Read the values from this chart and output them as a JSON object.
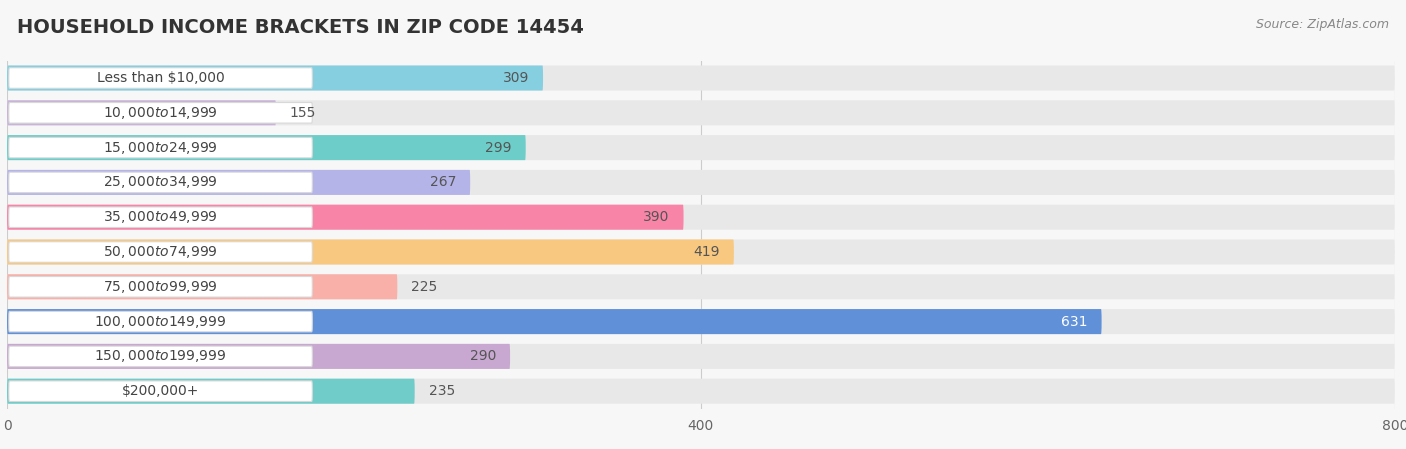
{
  "title": "HOUSEHOLD INCOME BRACKETS IN ZIP CODE 14454",
  "source": "Source: ZipAtlas.com",
  "categories": [
    "Less than $10,000",
    "$10,000 to $14,999",
    "$15,000 to $24,999",
    "$25,000 to $34,999",
    "$35,000 to $49,999",
    "$50,000 to $74,999",
    "$75,000 to $99,999",
    "$100,000 to $149,999",
    "$150,000 to $199,999",
    "$200,000+"
  ],
  "values": [
    309,
    155,
    299,
    267,
    390,
    419,
    225,
    631,
    290,
    235
  ],
  "bar_colors": [
    "#85cfe0",
    "#c8b4d8",
    "#6dcdc8",
    "#b4b4e8",
    "#f885a8",
    "#f8c880",
    "#f8b0a8",
    "#6090d8",
    "#c8a8d0",
    "#70ccc8"
  ],
  "value_inside_bar": [
    true,
    false,
    true,
    true,
    true,
    true,
    false,
    true,
    true,
    false
  ],
  "value_colors_inside": [
    "#555555",
    "#555555",
    "#555555",
    "#555555",
    "#555555",
    "#555555",
    "#555555",
    "#ffffff",
    "#555555",
    "#555555"
  ],
  "xlim": [
    0,
    800
  ],
  "xticks": [
    0,
    400,
    800
  ],
  "background_color": "#f7f7f7",
  "bar_bg_color": "#e8e8e8",
  "title_fontsize": 14,
  "label_fontsize": 10,
  "value_fontsize": 10
}
